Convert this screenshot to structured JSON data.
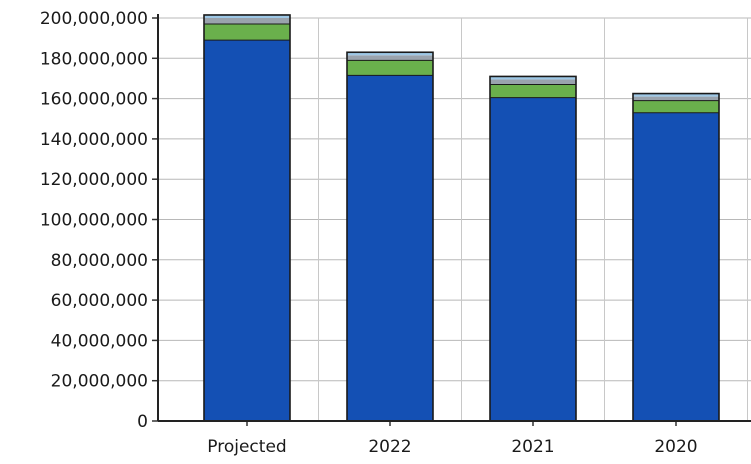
{
  "chart_data": {
    "type": "bar",
    "stacked": true,
    "categories": [
      "Projected",
      "2022",
      "2021",
      "2020"
    ],
    "series": [
      {
        "values": [
          189000000,
          171500000,
          160500000,
          153000000
        ],
        "color": "#1450b4"
      },
      {
        "values": [
          8000000,
          7500000,
          6500000,
          6000000
        ],
        "color": "#6ab04c"
      },
      {
        "values": [
          3000000,
          2500000,
          2500000,
          2000000
        ],
        "color": "#9aa3ad"
      },
      {
        "values": [
          1500000,
          1500000,
          1500000,
          1500000
        ],
        "color": "#9ec8e6"
      }
    ],
    "ylim": [
      0,
      200000000
    ],
    "yticks": [
      0,
      20000000,
      40000000,
      60000000,
      80000000,
      100000000,
      120000000,
      140000000,
      160000000,
      180000000,
      200000000
    ],
    "ytick_labels": [
      "0",
      "20,000,000",
      "40,000,000",
      "60,000,000",
      "80,000,000",
      "100,000,000",
      "120,000,000",
      "140,000,000",
      "160,000,000",
      "180,000,000",
      "200,000,000"
    ],
    "grid": true,
    "legend": "none"
  }
}
